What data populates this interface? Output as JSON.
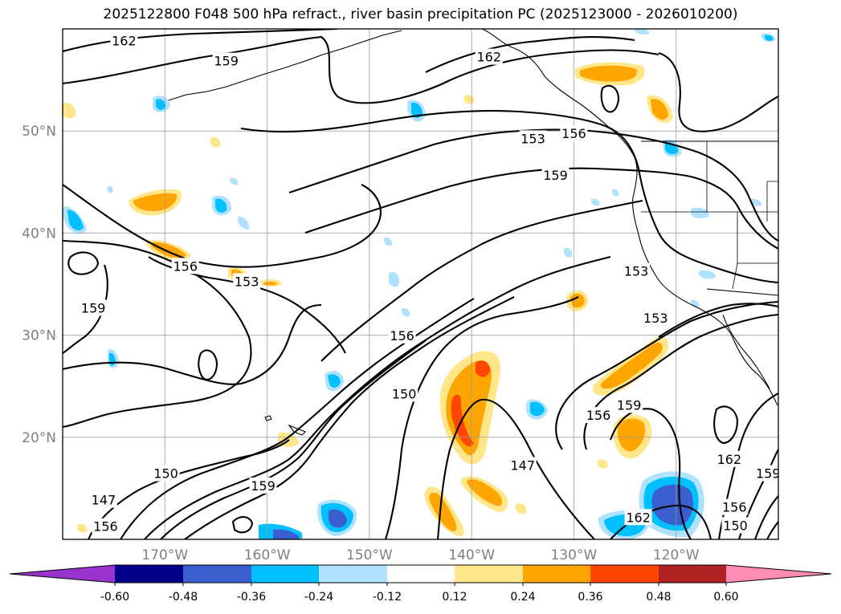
{
  "title": "2025122800 F048 500 hPa refract., river basin precipitation PC (2025123000 - 2026010200)",
  "chart_data": {
    "type": "contour-map",
    "title": "2025122800 F048 500 hPa refract., river basin precipitation PC (2025123000 - 2026010200)",
    "lat_labels": [
      "50°N",
      "40°N",
      "30°N",
      "20°N"
    ],
    "lat_values": [
      50,
      40,
      30,
      20
    ],
    "lon_labels": [
      "170°W",
      "160°W",
      "150°W",
      "140°W",
      "130°W",
      "120°W"
    ],
    "lon_values": [
      -170,
      -160,
      -150,
      -140,
      -130,
      -120
    ],
    "extent": {
      "lon": [
        -180,
        -110
      ],
      "lat": [
        10,
        60
      ]
    },
    "grid": true,
    "contour_labels": [
      {
        "text": "162",
        "lon": -174,
        "lat": 58.8
      },
      {
        "text": "159",
        "lon": -164,
        "lat": 56.8
      },
      {
        "text": "162",
        "lon": -138.3,
        "lat": 57.2
      },
      {
        "text": "153",
        "lon": -134,
        "lat": 49.2
      },
      {
        "text": "156",
        "lon": -130,
        "lat": 49.7
      },
      {
        "text": "159",
        "lon": -131.8,
        "lat": 45.6
      },
      {
        "text": "156",
        "lon": -168,
        "lat": 36.7
      },
      {
        "text": "153",
        "lon": -162,
        "lat": 35.2
      },
      {
        "text": "159",
        "lon": -177,
        "lat": 32.6
      },
      {
        "text": "153",
        "lon": -123.9,
        "lat": 36.2
      },
      {
        "text": "153",
        "lon": -122,
        "lat": 31.6
      },
      {
        "text": "156",
        "lon": -146.8,
        "lat": 29.9
      },
      {
        "text": "150",
        "lon": -146.6,
        "lat": 24.2
      },
      {
        "text": "156",
        "lon": -127.6,
        "lat": 22.1
      },
      {
        "text": "159",
        "lon": -124.6,
        "lat": 23.1
      },
      {
        "text": "147",
        "lon": -135,
        "lat": 17.2
      },
      {
        "text": "162",
        "lon": -114.8,
        "lat": 17.8
      },
      {
        "text": "159",
        "lon": -111,
        "lat": 16.4
      },
      {
        "text": "150",
        "lon": -169.9,
        "lat": 16.4
      },
      {
        "text": "159",
        "lon": -160.4,
        "lat": 15.2
      },
      {
        "text": "147",
        "lon": -176,
        "lat": 13.8
      },
      {
        "text": "156",
        "lon": -175.8,
        "lat": 11.2
      },
      {
        "text": "162",
        "lon": -123.7,
        "lat": 12.1
      },
      {
        "text": "156",
        "lon": -114.3,
        "lat": 13.1
      },
      {
        "text": "150",
        "lon": -114.2,
        "lat": 11.3
      }
    ],
    "colorbar": {
      "ticks": [
        "-0.60",
        "-0.48",
        "-0.36",
        "-0.24",
        "-0.12",
        "0.12",
        "0.24",
        "0.36",
        "0.48",
        "0.60"
      ],
      "levels": [
        -0.6,
        -0.48,
        -0.36,
        -0.24,
        -0.12,
        0.12,
        0.24,
        0.36,
        0.48,
        0.6
      ],
      "colors": [
        "#9a32cd",
        "#00008b",
        "#3a5fcd",
        "#00bfff",
        "#b0e2ff",
        "#ffffff",
        "#ffe68a",
        "#ffa500",
        "#ff4500",
        "#b22222",
        "#ff8cb4"
      ],
      "extend": "both"
    }
  }
}
